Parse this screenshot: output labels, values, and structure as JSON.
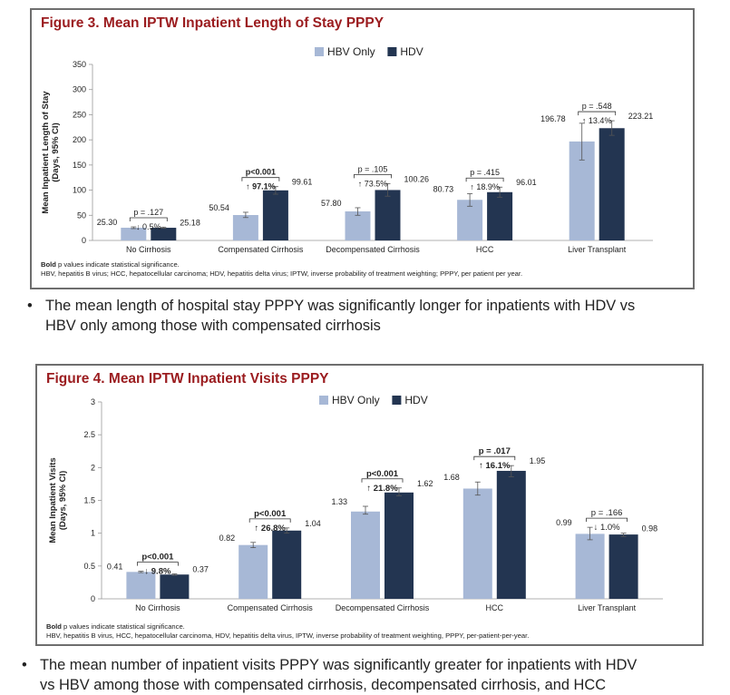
{
  "colors": {
    "hbv": "#a7b8d6",
    "hdv": "#233551",
    "title": "#9b1c1f"
  },
  "figures": [
    {
      "title": "Figure 3. Mean IPTW Inpatient Length of Stay PPPY",
      "footnote_bold": "Bold",
      "footnote_line1_rest": " p values indicate statistical significance.",
      "footnote_line2": "HBV, hepatitis B virus; HCC, hepatocellular carcinoma; HDV, hepatitis delta virus; IPTW, inverse probability of treatment weighting; PPPY, per patient per year.",
      "bullet": [
        "The mean length of hospital stay PPPY was significantly longer for inpatients with HDV vs",
        "HBV only among those with compensated cirrhosis"
      ]
    },
    {
      "title": "Figure 4. Mean IPTW Inpatient Visits PPPY",
      "footnote_bold": "Bold",
      "footnote_line1_rest": " p values indicate statistical significance.",
      "footnote_line2": "HBV, hepatitis B virus, HCC, hepatocellular carcinoma, HDV, hepatitis delta virus, IPTW, inverse probability of treatment weighting, PPPY, per-patient-per-year.",
      "bullet": [
        "The mean number of inpatient visits PPPY was significantly greater for inpatients with HDV",
        "vs HBV among those with compensated cirrhosis, decompensated cirrhosis, and HCC"
      ]
    }
  ],
  "chart_data": [
    {
      "type": "bar",
      "title": "Figure 3. Mean IPTW Inpatient Length of Stay PPPY",
      "ylabel": [
        "Mean Inpatient Length of Stay",
        "(Days, 95% CI)"
      ],
      "ylim": [
        0,
        350
      ],
      "yticks": [
        0,
        50,
        100,
        150,
        200,
        250,
        300,
        350
      ],
      "ytick_labels": [
        "0",
        "50",
        "100",
        "150",
        "200",
        "250",
        "300",
        "350"
      ],
      "grid": false,
      "legend_position": "top-center",
      "categories": [
        "No Cirrhosis",
        "Compensated Cirrhosis",
        "Decompensated Cirrhosis",
        "HCC",
        "Liver Transplant"
      ],
      "series": [
        {
          "name": "HBV Only",
          "values": [
            25.3,
            50.54,
            57.8,
            80.73,
            196.78
          ],
          "labels": [
            "25.30",
            "50.54",
            "57.80",
            "80.73",
            "196.78"
          ],
          "ci_low": [
            23.5,
            45.5,
            50,
            68,
            160
          ],
          "ci_high": [
            27,
            56,
            65,
            93,
            233
          ]
        },
        {
          "name": "HDV",
          "values": [
            25.18,
            99.61,
            100.26,
            96.01,
            223.21
          ],
          "labels": [
            "25.18",
            "99.61",
            "100.26",
            "96.01",
            "223.21"
          ],
          "ci_low": [
            24,
            92,
            88,
            86,
            209
          ],
          "ci_high": [
            26.5,
            107,
            113,
            106,
            238
          ]
        }
      ],
      "annotations": [
        {
          "p": "p = .127",
          "change": "↓ 0.5%",
          "bold": false
        },
        {
          "p": "p<0.001",
          "change_prefix": "↑ ",
          "change_value": "97.1%",
          "bold": true
        },
        {
          "p": "p = .105",
          "change": "↑ 73.5%",
          "bold": false
        },
        {
          "p": "p = .415",
          "change": "↑ 18.9%",
          "bold": false
        },
        {
          "p": "p = .548",
          "change": "↑ 13.4%",
          "bold": false
        }
      ]
    },
    {
      "type": "bar",
      "title": "Figure 4. Mean IPTW Inpatient Visits PPPY",
      "ylabel": [
        "Mean Inpatient Visits",
        "(Days, 95% CI)"
      ],
      "ylim": [
        0,
        3
      ],
      "yticks": [
        0,
        0.5,
        1,
        1.5,
        2,
        2.5,
        3
      ],
      "ytick_labels": [
        "0",
        "0.5",
        "1",
        "1.5",
        "2",
        "2.5",
        "3"
      ],
      "grid": false,
      "legend_position": "top-center",
      "categories": [
        "No Cirrhosis",
        "Compensated Cirrhosis",
        "Decompensated Cirrhosis",
        "HCC",
        "Liver Transplant"
      ],
      "series": [
        {
          "name": "HBV Only",
          "values": [
            0.41,
            0.82,
            1.33,
            1.68,
            0.99
          ],
          "labels": [
            "0.41",
            "0.82",
            "1.33",
            "1.68",
            "0.99"
          ],
          "ci_low": [
            0.4,
            0.78,
            1.29,
            1.58,
            0.9
          ],
          "ci_high": [
            0.42,
            0.86,
            1.41,
            1.78,
            1.09
          ]
        },
        {
          "name": "HDV",
          "values": [
            0.37,
            1.04,
            1.62,
            1.95,
            0.98
          ],
          "labels": [
            "0.37",
            "1.04",
            "1.62",
            "1.95",
            "0.98"
          ],
          "ci_low": [
            0.36,
            1.0,
            1.57,
            1.86,
            0.95
          ],
          "ci_high": [
            0.38,
            1.08,
            1.69,
            2.03,
            1.0
          ]
        }
      ],
      "annotations": [
        {
          "p": "p<0.001",
          "change_prefix": "↓ ",
          "change_value": "9.8%",
          "bold": true
        },
        {
          "p": "p<0.001",
          "change_prefix": "↑ ",
          "change_value": "26.8%",
          "bold": true
        },
        {
          "p": "p<0.001",
          "change_prefix": "↑ ",
          "change_value": "21.8%",
          "bold": true
        },
        {
          "p": "p = .017",
          "change_prefix": "↑ ",
          "change_value": "16.1%",
          "bold": true
        },
        {
          "p": "p = .166",
          "change": "↓ 1.0%",
          "bold": false
        }
      ]
    }
  ]
}
